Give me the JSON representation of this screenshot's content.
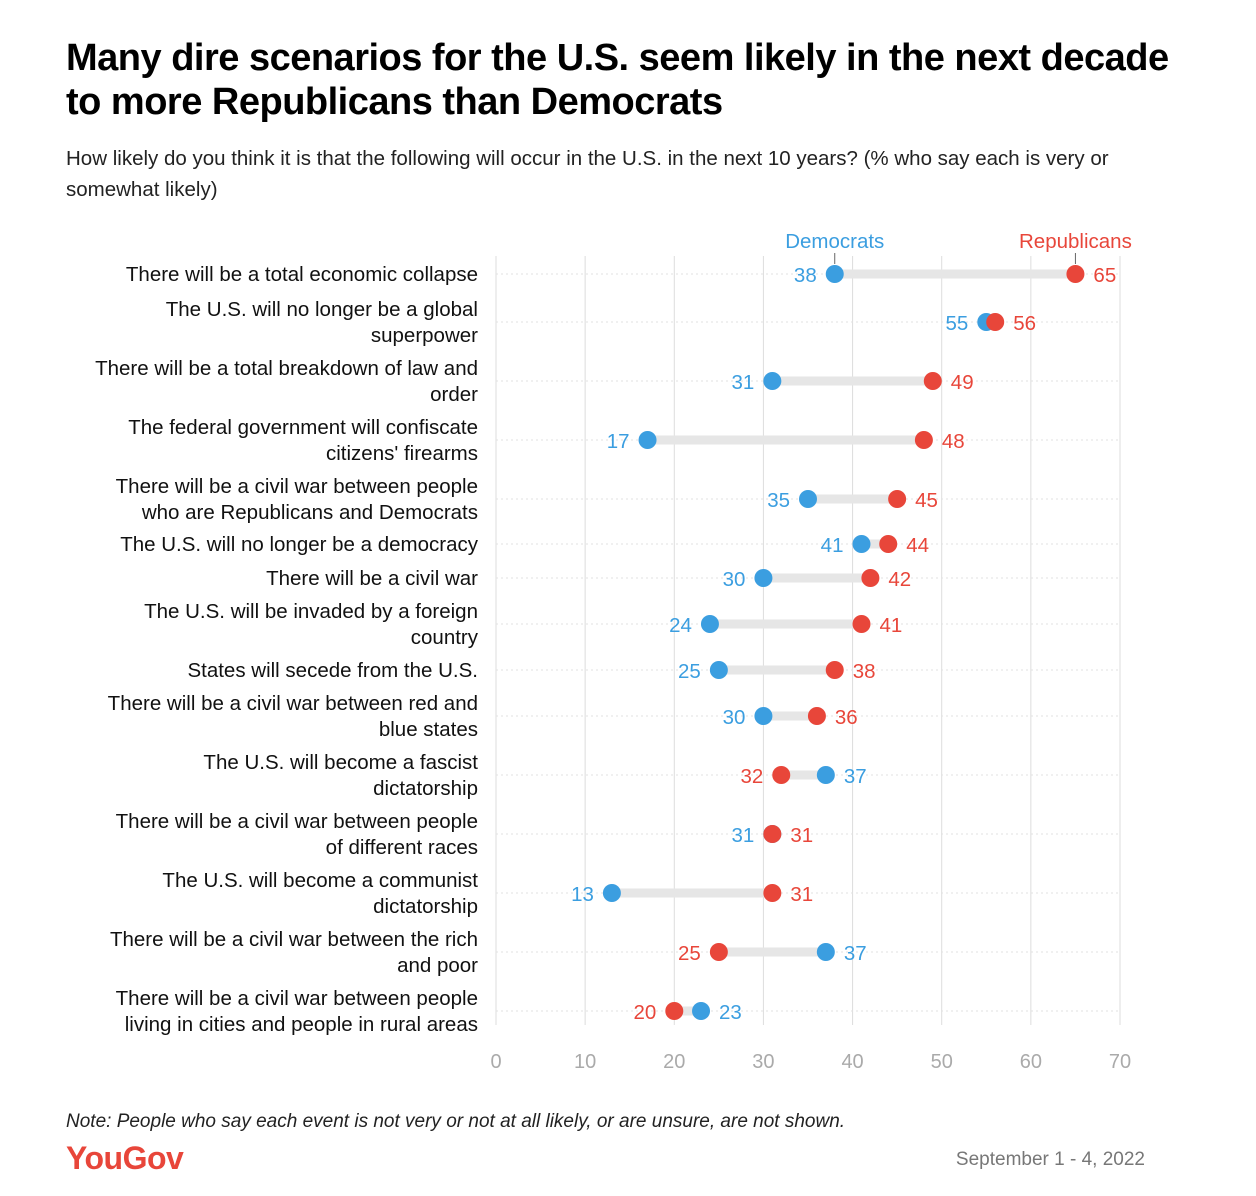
{
  "header": {
    "title": "Many dire scenarios for the U.S. seem likely in the next decade to more Republicans than Democrats",
    "subtitle": "How likely do you think it is that the following will occur in the U.S. in the next 10 years? (% who say each is very or somewhat likely)"
  },
  "footer": {
    "note": "Note: People who say each event is not very or not at all likely, or are unsure, are not shown.",
    "brand": "YouGov",
    "date_range": "September 1 - 4, 2022"
  },
  "colors": {
    "democrats": "#3b9ee0",
    "republicans": "#e8463a",
    "connector": "#e6e6e6",
    "grid": "#dddddd",
    "tick": "#aaaaaa"
  },
  "chart_data": {
    "type": "dot",
    "title": "Many dire scenarios for the U.S. seem likely in the next decade to more Republicans than Democrats",
    "xlim": [
      0,
      70
    ],
    "x_ticks": [
      0,
      10,
      20,
      30,
      40,
      50,
      60,
      70
    ],
    "grid": true,
    "legend_placement": "top",
    "categories": [
      "There will be a total economic collapse",
      "The U.S. will no longer be a global superpower",
      "There will be a total breakdown of law and order",
      "The federal government will confiscate citizens' firearms",
      "There will be a civil war between people who are Republicans and Democrats",
      "The U.S. will no longer be a democracy",
      "There will be a civil war",
      "The U.S. will be invaded by a foreign country",
      "States will secede from the U.S.",
      "There will be a civil war between red and blue states",
      "The U.S. will become a fascist dictatorship",
      "There will be a civil war between people of different races",
      "The U.S. will become a communist dictatorship",
      "There will be a civil war between the rich and poor",
      "There will be a civil war between people living in cities and people in rural areas"
    ],
    "series": [
      {
        "name": "Democrats",
        "values": [
          38,
          55,
          31,
          17,
          35,
          41,
          30,
          24,
          25,
          30,
          37,
          31,
          13,
          37,
          23
        ]
      },
      {
        "name": "Republicans",
        "values": [
          65,
          56,
          49,
          48,
          45,
          44,
          42,
          41,
          38,
          36,
          32,
          31,
          31,
          25,
          20
        ]
      }
    ]
  }
}
